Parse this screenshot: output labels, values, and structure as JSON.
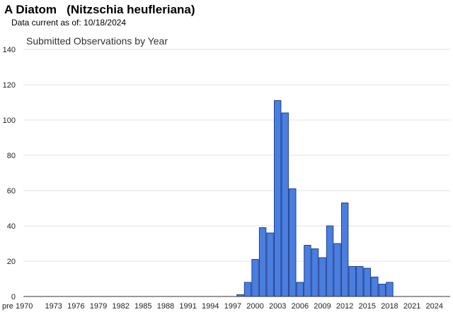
{
  "header": {
    "title": "A Diatom   (Nitzschia heufleriana)",
    "subtitle": "Data current as of: 10/18/2024"
  },
  "chart_data": {
    "type": "bar",
    "title": "Submitted Observations by Year",
    "xlabel": "",
    "ylabel": "",
    "ylim": [
      0,
      140
    ],
    "yticks": [
      0,
      20,
      40,
      60,
      80,
      100,
      120,
      140
    ],
    "grid": true,
    "bar_color": "#4a7fe0",
    "bar_edge_color": "#1f3f8f",
    "tick_labels": [
      "pre 1970",
      "1973",
      "1976",
      "1979",
      "1982",
      "1985",
      "1988",
      "1991",
      "1994",
      "1997",
      "2000",
      "2003",
      "2006",
      "2009",
      "2012",
      "2015",
      "2018",
      "2021",
      "2024"
    ],
    "categories": [
      "pre 1970",
      "1970",
      "1971",
      "1972",
      "1973",
      "1974",
      "1975",
      "1976",
      "1977",
      "1978",
      "1979",
      "1980",
      "1981",
      "1982",
      "1983",
      "1984",
      "1985",
      "1986",
      "1987",
      "1988",
      "1989",
      "1990",
      "1991",
      "1992",
      "1993",
      "1994",
      "1995",
      "1996",
      "1997",
      "1998",
      "1999",
      "2000",
      "2001",
      "2002",
      "2003",
      "2004",
      "2005",
      "2006",
      "2007",
      "2008",
      "2009",
      "2010",
      "2011",
      "2012",
      "2013",
      "2014",
      "2015",
      "2016",
      "2017",
      "2018",
      "2019",
      "2020",
      "2021",
      "2022",
      "2023",
      "2024"
    ],
    "values": [
      0,
      0,
      0,
      0,
      0,
      0,
      0,
      0,
      0,
      0,
      0,
      0,
      0,
      0,
      0,
      0,
      0,
      0,
      0,
      0,
      0,
      0,
      0,
      0,
      0,
      0,
      0,
      0,
      0,
      1,
      8,
      21,
      39,
      36,
      111,
      104,
      61,
      8,
      29,
      27,
      22,
      40,
      30,
      53,
      17,
      17,
      16,
      11,
      7,
      8,
      0,
      0,
      0,
      0,
      0,
      0
    ]
  }
}
